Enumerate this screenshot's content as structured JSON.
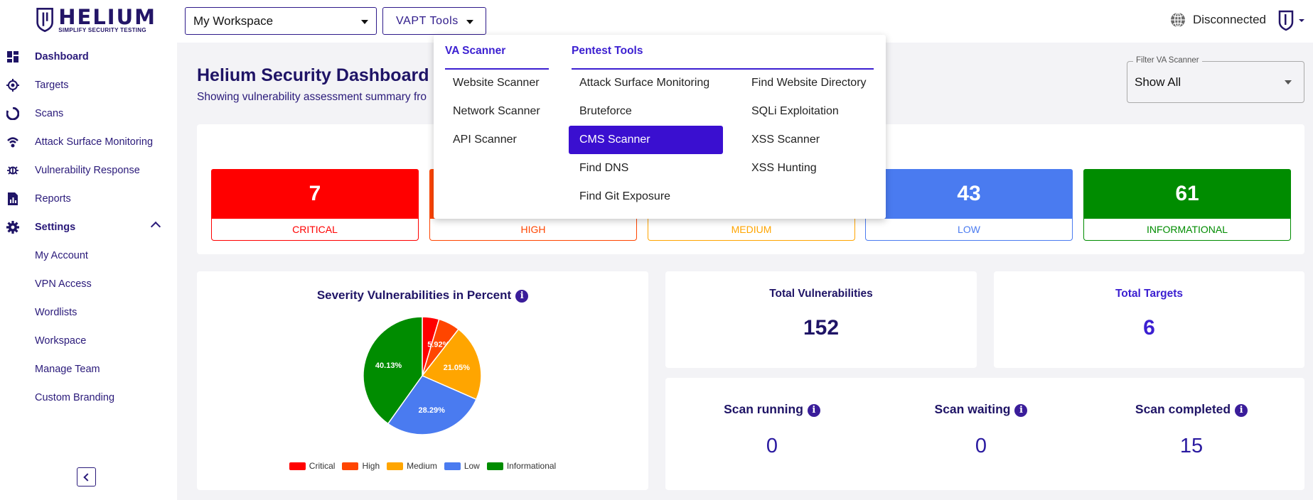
{
  "header": {
    "logo_title": "HELIUM",
    "logo_tagline": "SIMPLIFY SECURITY TESTING",
    "workspace_select": "My Workspace",
    "vapt_button": "VAPT Tools",
    "connection_status": "Disconnected"
  },
  "sidebar": {
    "items": [
      {
        "label": "Dashboard",
        "icon": "dashboard-icon"
      },
      {
        "label": "Targets",
        "icon": "target-icon"
      },
      {
        "label": "Scans",
        "icon": "scans-icon"
      },
      {
        "label": "Attack Surface Monitoring",
        "icon": "broadcast-icon"
      },
      {
        "label": "Vulnerability Response",
        "icon": "bug-icon"
      },
      {
        "label": "Reports",
        "icon": "report-icon"
      },
      {
        "label": "Settings",
        "icon": "gear-icon"
      }
    ],
    "settings_children": [
      "My Account",
      "VPN Access",
      "Wordlists",
      "Workspace",
      "Manage Team",
      "Custom Branding"
    ]
  },
  "main": {
    "title": "Helium Security Dashboard",
    "subtitle": "Showing vulnerability assessment summary fro",
    "filter_label": "Filter VA Scanner",
    "filter_value": "Show All"
  },
  "severity": [
    {
      "label": "CRITICAL",
      "count": "7",
      "color": "#ff0000"
    },
    {
      "label": "HIGH",
      "count": "",
      "color": "#ff4500"
    },
    {
      "label": "MEDIUM",
      "count": "",
      "color": "#ffa500"
    },
    {
      "label": "LOW",
      "count": "43",
      "color": "#4a7bf0"
    },
    {
      "label": "INFORMATIONAL",
      "count": "61",
      "color": "#008c00"
    }
  ],
  "pie": {
    "title": "Severity Vulnerabilities in Percent"
  },
  "chart_data": {
    "type": "pie",
    "title": "Severity Vulnerabilities in Percent",
    "categories": [
      "Critical",
      "High",
      "Medium",
      "Low",
      "Informational"
    ],
    "values": [
      4.61,
      5.92,
      21.05,
      28.29,
      40.13
    ],
    "labels": [
      "",
      "5.92%",
      "21.05%",
      "28.29%",
      "40.13%"
    ],
    "colors": [
      "#ff0000",
      "#ff4500",
      "#ffa500",
      "#4a7bf0",
      "#008c00"
    ],
    "legend": "bottom"
  },
  "stats": {
    "total_vulnerabilities_label": "Total Vulnerabilities",
    "total_vulnerabilities": "152",
    "total_targets_label": "Total Targets",
    "total_targets": "6",
    "scan_running_label": "Scan running",
    "scan_running": "0",
    "scan_waiting_label": "Scan waiting",
    "scan_waiting": "0",
    "scan_completed_label": "Scan completed",
    "scan_completed": "15"
  },
  "vapt_menu": {
    "va_header": "VA Scanner",
    "va_items": [
      "Website Scanner",
      "Network Scanner",
      "API Scanner"
    ],
    "pentest_header": "Pentest Tools",
    "pentest_col1": [
      "Attack Surface Monitoring",
      "Bruteforce",
      "CMS Scanner",
      "Find DNS",
      "Find Git Exposure"
    ],
    "pentest_col2": [
      "Find Website Directory",
      "SQLi Exploitation",
      "XSS Scanner",
      "XSS Hunting"
    ],
    "selected": "CMS Scanner"
  }
}
